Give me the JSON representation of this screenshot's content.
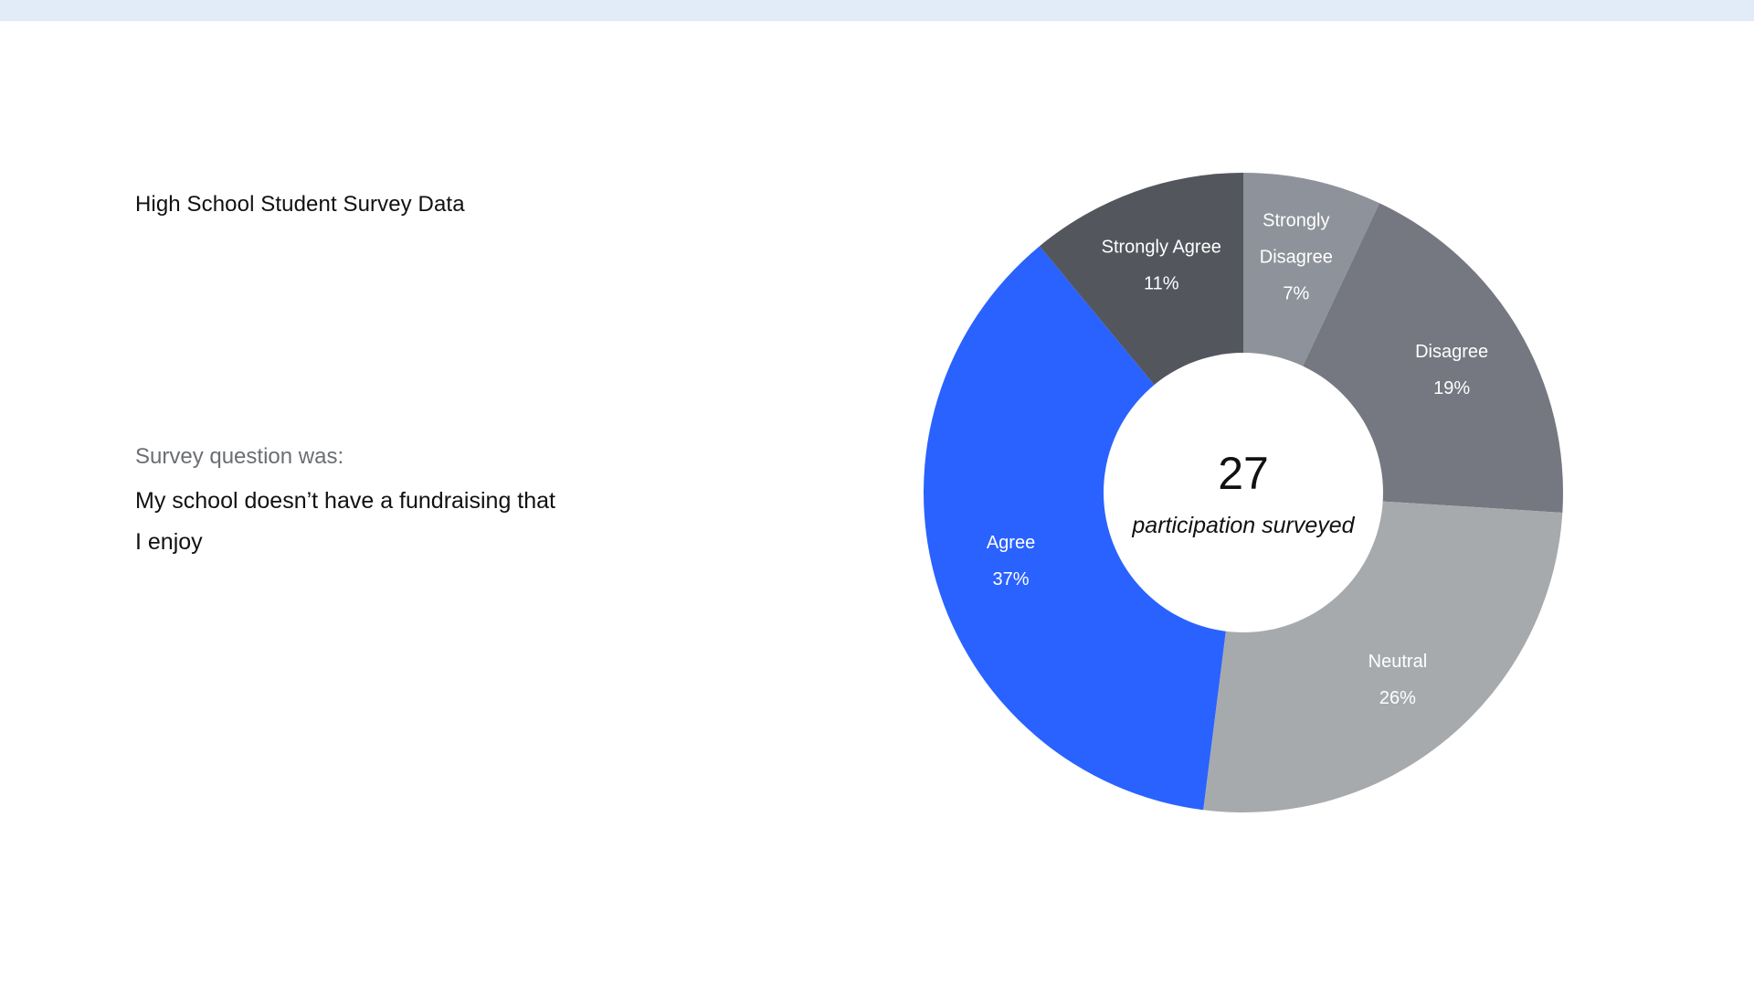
{
  "title": "High School Student Survey Data",
  "question": {
    "label": "Survey question was:",
    "text": "My school doesn’t have a fundraising that I enjoy"
  },
  "chart_data": {
    "type": "pie",
    "donut": true,
    "center": {
      "total": "27",
      "caption": "participation surveyed"
    },
    "slices": [
      {
        "label": "Strongly Disagree",
        "label_lines": [
          "Strongly",
          "Disagree"
        ],
        "value": 7,
        "display": "7%",
        "color": "#8e939b"
      },
      {
        "label": "Disagree",
        "label_lines": [
          "Disagree"
        ],
        "value": 19,
        "display": "19%",
        "color": "#757880"
      },
      {
        "label": "Neutral",
        "label_lines": [
          "Neutral"
        ],
        "value": 26,
        "display": "26%",
        "color": "#a7aaad"
      },
      {
        "label": "Agree",
        "label_lines": [
          "Agree"
        ],
        "value": 37,
        "display": "37%",
        "color": "#2962ff"
      },
      {
        "label": "Strongly Agree",
        "label_lines": [
          "Strongly Agree"
        ],
        "value": 11,
        "display": "11%",
        "color": "#53575d"
      }
    ]
  }
}
